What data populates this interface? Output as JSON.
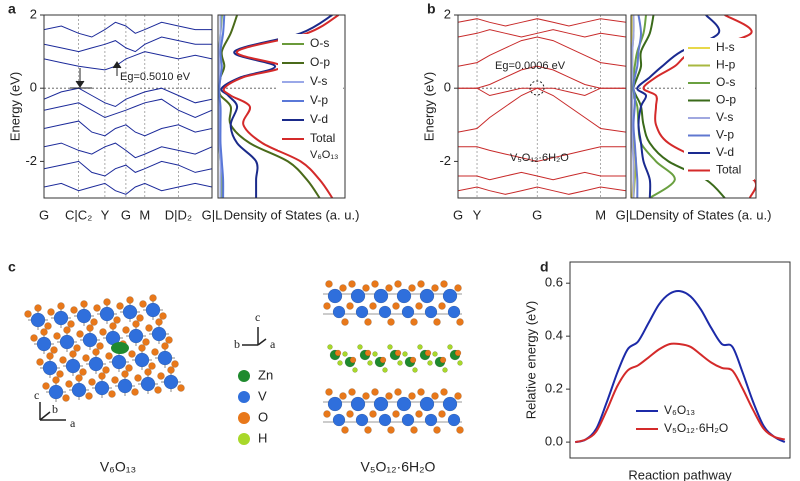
{
  "panels": [
    "a",
    "b",
    "c",
    "d"
  ],
  "structures": {
    "left_caption": "V₆O₁₃",
    "right_caption": "V₅O₁₂·6H₂O",
    "left_axes": [
      "c",
      "b",
      "a"
    ],
    "center_axes": [
      "c",
      "b",
      "a"
    ],
    "legend": [
      {
        "label": "Zn",
        "color": "#1f8a2e"
      },
      {
        "label": "V",
        "color": "#2f6fdc"
      },
      {
        "label": "O",
        "color": "#e8781a"
      },
      {
        "label": "H",
        "color": "#a8d82a"
      }
    ]
  },
  "chart_data": [
    {
      "type": "line",
      "orientation": "vertical",
      "ylabel": "Energy (eV)",
      "xlim": [
        0,
        1.6
      ],
      "ylim": [
        -3,
        2
      ],
      "yticks": [
        -2,
        0,
        2
      ],
      "xticks": [
        {
          "value": 0,
          "label": "G"
        },
        {
          "value": 0.33,
          "label": "C|C₂"
        },
        {
          "value": 0.58,
          "label": "Y"
        },
        {
          "value": 0.78,
          "label": "G"
        },
        {
          "value": 0.96,
          "label": "M"
        },
        {
          "value": 1.28,
          "label": "D|D₂"
        },
        {
          "value": 1.6,
          "label": "G|L"
        }
      ],
      "annotations": [
        "Eg=0.5010 eV"
      ],
      "x": [
        0,
        0.165,
        0.33,
        0.455,
        0.58,
        0.68,
        0.78,
        0.87,
        0.96,
        1.12,
        1.28,
        1.44,
        1.6
      ],
      "series": [
        {
          "color": "#1c2a9a",
          "values": [
            -0.3,
            -0.1,
            0,
            -0.2,
            -0.4,
            -0.5,
            -0.3,
            -0.2,
            -0.1,
            0,
            -0.2,
            -0.4,
            -0.3
          ]
        },
        {
          "color": "#1c2a9a",
          "values": [
            -0.6,
            -0.5,
            -0.4,
            -0.6,
            -0.8,
            -0.7,
            -0.6,
            -0.5,
            -0.4,
            -0.3,
            -0.6,
            -0.8,
            -0.6
          ]
        },
        {
          "color": "#1c2a9a",
          "values": [
            -1.1,
            -1,
            -0.9,
            -1.2,
            -1.3,
            -1.1,
            -1,
            -1.2,
            -1.3,
            -1.1,
            -1,
            -1.2,
            -1.1
          ]
        },
        {
          "color": "#1c2a9a",
          "values": [
            -1.6,
            -1.5,
            -1.7,
            -1.8,
            -1.6,
            -1.5,
            -1.7,
            -1.9,
            -1.8,
            -1.6,
            -1.7,
            -1.8,
            -1.6
          ]
        },
        {
          "color": "#1c2a9a",
          "values": [
            -2.2,
            -2.1,
            -2,
            -2.3,
            -2.4,
            -2.2,
            -2.1,
            -2.3,
            -2.2,
            -2,
            -2.1,
            -2.3,
            -2.2
          ]
        },
        {
          "color": "#1c2a9a",
          "values": [
            -2.7,
            -2.6,
            -2.8,
            -2.7,
            -2.6,
            -2.8,
            -2.9,
            -2.7,
            -2.6,
            -2.8,
            -2.7,
            -2.6,
            -2.7
          ]
        },
        {
          "color": "#1c2a9a",
          "values": [
            0.8,
            0.7,
            0.6,
            0.55,
            0.5,
            0.6,
            0.8,
            0.9,
            1,
            0.9,
            0.8,
            0.9,
            0.8
          ]
        },
        {
          "color": "#1c2a9a",
          "values": [
            1.2,
            1.1,
            1,
            1.1,
            1.2,
            1.3,
            1.1,
            1,
            1.2,
            1.4,
            1.3,
            1.2,
            1.2
          ]
        },
        {
          "color": "#1c2a9a",
          "values": [
            1.6,
            1.7,
            1.5,
            1.4,
            1.6,
            1.8,
            1.7,
            1.5,
            1.6,
            1.8,
            1.7,
            1.6,
            1.6
          ]
        }
      ]
    },
    {
      "type": "line",
      "orientation": "horizontal",
      "xlabel": "Density of States (a. u.)",
      "xlim": [
        0,
        10
      ],
      "ylim": [
        -3,
        2
      ],
      "annotations": [
        "V₆O₁₃"
      ],
      "y": [
        -3,
        -2.5,
        -2,
        -1.5,
        -1,
        -0.5,
        -0.2,
        0,
        0.3,
        0.6,
        1,
        1.5,
        2
      ],
      "series": [
        {
          "name": "O-s",
          "color": "#6a9a3a",
          "values": [
            0.3,
            0.3,
            0.2,
            0.1,
            0.1,
            0.1,
            0,
            0,
            0,
            0.1,
            0.1,
            0.2,
            0.3
          ]
        },
        {
          "name": "O-p",
          "color": "#4a6a1a",
          "values": [
            8,
            7,
            5.5,
            2.5,
            1,
            1,
            0.2,
            0.1,
            0.2,
            0.5,
            0.3,
            1,
            1.5
          ]
        },
        {
          "name": "V-s",
          "color": "#9aa8e8",
          "values": [
            0.2,
            0.2,
            0.2,
            0.1,
            0.1,
            0.1,
            0.1,
            0,
            0.1,
            0.1,
            0.1,
            0.2,
            0.2
          ]
        },
        {
          "name": "V-p",
          "color": "#5a78d8",
          "values": [
            0.4,
            0.4,
            0.3,
            0.2,
            0.2,
            0.2,
            0.1,
            0.1,
            0.2,
            0.3,
            0.2,
            0.4,
            0.5
          ]
        },
        {
          "name": "V-d",
          "color": "#1a2a8a",
          "values": [
            3,
            3,
            3,
            1.5,
            1,
            1.5,
            0.8,
            0.3,
            1.8,
            4.5,
            1.3,
            6.5,
            9
          ]
        },
        {
          "name": "Total",
          "color": "#d42a2a",
          "values": [
            9,
            8,
            6.5,
            3.5,
            2,
            2.5,
            1,
            0.5,
            2,
            5,
            1.5,
            7,
            9.5
          ]
        }
      ]
    },
    {
      "type": "line",
      "orientation": "vertical",
      "ylabel": "Energy (eV)",
      "xlim": [
        0,
        1.06
      ],
      "ylim": [
        -3,
        2
      ],
      "yticks": [
        -2,
        0,
        2
      ],
      "xticks": [
        {
          "value": 0,
          "label": "G"
        },
        {
          "value": 0.12,
          "label": "Y"
        },
        {
          "value": 0.5,
          "label": "G"
        },
        {
          "value": 0.9,
          "label": "M"
        },
        {
          "value": 1.06,
          "label": "G|L"
        }
      ],
      "annotations": [
        "Eg=0.0006 eV",
        "V₅O₁₂·6H₂O"
      ],
      "x": [
        0,
        0.12,
        0.2,
        0.3,
        0.4,
        0.5,
        0.6,
        0.7,
        0.8,
        0.9,
        1.06
      ],
      "series": [
        {
          "color": "#c82a2a",
          "values": [
            -1.2,
            -1.1,
            -0.8,
            -0.5,
            -0.2,
            0,
            -0.2,
            -0.5,
            -0.8,
            -1.1,
            -1.2
          ]
        },
        {
          "color": "#c82a2a",
          "values": [
            0,
            0,
            0.1,
            0.3,
            0.5,
            0.6,
            0.5,
            0.3,
            0.1,
            0,
            0
          ]
        },
        {
          "color": "#c82a2a",
          "values": [
            0,
            0,
            -0.2,
            -0.1,
            0,
            0,
            0,
            -0.1,
            -0.2,
            0,
            0
          ]
        },
        {
          "color": "#c82a2a",
          "values": [
            0.6,
            0.7,
            0.9,
            1.1,
            1.3,
            1.4,
            1.3,
            1.1,
            0.9,
            0.7,
            0.6
          ]
        },
        {
          "color": "#c82a2a",
          "values": [
            1.4,
            1.5,
            1.6,
            1.5,
            1.4,
            1.5,
            1.6,
            1.5,
            1.4,
            1.5,
            1.4
          ]
        },
        {
          "color": "#c82a2a",
          "values": [
            1.8,
            1.9,
            1.8,
            1.7,
            1.8,
            1.9,
            1.8,
            1.7,
            1.8,
            1.9,
            1.8
          ]
        },
        {
          "color": "#c82a2a",
          "values": [
            -1.6,
            -1.6,
            -1.7,
            -1.8,
            -1.9,
            -2,
            -1.9,
            -1.8,
            -1.7,
            -1.6,
            -1.6
          ]
        },
        {
          "color": "#c82a2a",
          "values": [
            -2.4,
            -2.4,
            -2.5,
            -2.4,
            -2.3,
            -2.4,
            -2.5,
            -2.4,
            -2.3,
            -2.4,
            -2.4
          ]
        },
        {
          "color": "#c82a2a",
          "values": [
            -2.8,
            -2.7,
            -2.8,
            -2.9,
            -2.8,
            -2.7,
            -2.8,
            -2.9,
            -2.8,
            -2.7,
            -2.8
          ]
        }
      ]
    },
    {
      "type": "line",
      "orientation": "horizontal",
      "xlabel": "Density of States (a. u.)",
      "xlim": [
        0,
        10
      ],
      "ylim": [
        -3,
        2
      ],
      "y": [
        -3,
        -2.5,
        -2,
        -1.5,
        -1,
        -0.5,
        -0.2,
        0,
        0.3,
        0.6,
        1,
        1.5,
        2
      ],
      "series": [
        {
          "name": "H-s",
          "color": "#e8d84a",
          "values": [
            0.1,
            0.2,
            0.3,
            0.1,
            0.1,
            0.1,
            0,
            0,
            0,
            0.1,
            0.1,
            0.1,
            0.1
          ]
        },
        {
          "name": "H-p",
          "color": "#a8b840",
          "values": [
            0.2,
            0.3,
            0.4,
            0.2,
            0.1,
            0.1,
            0,
            0,
            0.1,
            0.1,
            0.1,
            0.2,
            0.2
          ]
        },
        {
          "name": "O-s",
          "color": "#6aa040",
          "values": [
            1.5,
            3.5,
            2,
            0.8,
            0.6,
            0.5,
            0.2,
            0.1,
            0.2,
            0.3,
            0.5,
            1,
            1.2
          ]
        },
        {
          "name": "O-p",
          "color": "#3a6a1a",
          "values": [
            7.5,
            6,
            3,
            1.5,
            1,
            0.8,
            0.4,
            0.2,
            0.5,
            0.8,
            0.8,
            1.5,
            1.8
          ]
        },
        {
          "name": "V-s",
          "color": "#a0a8e0",
          "values": [
            0.2,
            0.2,
            0.2,
            0.1,
            0.1,
            0.1,
            0.1,
            0,
            0.1,
            0.1,
            0.1,
            0.2,
            0.2
          ]
        },
        {
          "name": "V-p",
          "color": "#6078d0",
          "values": [
            0.5,
            0.5,
            0.4,
            0.3,
            0.2,
            0.3,
            0.3,
            0.2,
            0.3,
            0.5,
            0.6,
            0.8,
            0.6
          ]
        },
        {
          "name": "V-d",
          "color": "#1a2a90",
          "values": [
            1.5,
            1.5,
            1,
            0.8,
            0.6,
            0.8,
            1.2,
            0.5,
            1.5,
            2.5,
            4,
            7,
            6
          ]
        },
        {
          "name": "Total",
          "color": "#d42a2a",
          "values": [
            9.5,
            9.8,
            6,
            3,
            2,
            2,
            2,
            1,
            2,
            3.5,
            5,
            9.6,
            7.5
          ]
        }
      ]
    },
    {
      "type": "line",
      "orientation": "vertical",
      "ylabel": "Relative energy (eV)",
      "xlabel": "Reaction pathway",
      "xlim": [
        -0.5,
        20.5
      ],
      "ylim": [
        -0.06,
        0.68
      ],
      "yticks": [
        {
          "value": 0,
          "label": "0.0"
        },
        0.2,
        0.4,
        0.6
      ],
      "smooth": true,
      "x": [
        0,
        1,
        2,
        3,
        4,
        5,
        6,
        7,
        8,
        9,
        10,
        11,
        12,
        13,
        14,
        15,
        16,
        17,
        18,
        19,
        20
      ],
      "series": [
        {
          "name": "V₆O₁₃",
          "color": "#1c2aa8",
          "values": [
            0,
            0.01,
            0.05,
            0.15,
            0.26,
            0.35,
            0.38,
            0.45,
            0.52,
            0.56,
            0.57,
            0.55,
            0.5,
            0.43,
            0.37,
            0.36,
            0.26,
            0.15,
            0.06,
            0.02,
            0
          ]
        },
        {
          "name": "V₅O₁₂·6H₂O",
          "color": "#d42a2a",
          "values": [
            0,
            0.01,
            0.04,
            0.12,
            0.21,
            0.27,
            0.29,
            0.32,
            0.35,
            0.37,
            0.37,
            0.36,
            0.33,
            0.3,
            0.28,
            0.27,
            0.2,
            0.12,
            0.05,
            0.02,
            0.01
          ]
        }
      ]
    }
  ]
}
